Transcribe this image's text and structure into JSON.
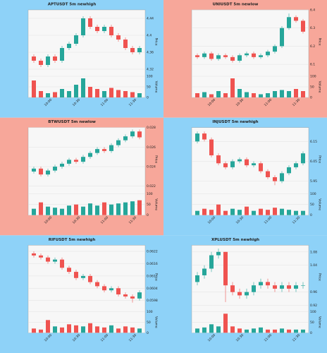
{
  "chart_data": [
    {
      "type": "candlestick",
      "title": "APTUSDT 5m newhigh",
      "background": "#8ed2f8",
      "up_color": "#26a69a",
      "down_color": "#ef5350",
      "volume_color": "#26a69a",
      "ylabel": "Price",
      "vlabel": "Volume",
      "x": [
        null,
        null,
        "10:00",
        null,
        null,
        null,
        "10:30",
        null,
        null,
        null,
        "11:00",
        null,
        null,
        null,
        "11:30",
        null
      ],
      "open": [
        4.35,
        4.34,
        4.33,
        4.35,
        4.34,
        4.37,
        4.38,
        4.4,
        4.44,
        4.42,
        4.41,
        4.42,
        4.4,
        4.39,
        4.37,
        4.36
      ],
      "high": [
        4.355,
        4.345,
        4.355,
        4.355,
        4.375,
        4.385,
        4.405,
        4.445,
        4.445,
        4.425,
        4.425,
        4.425,
        4.405,
        4.395,
        4.375,
        4.375
      ],
      "low": [
        4.335,
        4.325,
        4.325,
        4.335,
        4.335,
        4.365,
        4.375,
        4.395,
        4.415,
        4.405,
        4.405,
        4.395,
        4.385,
        4.365,
        4.355,
        4.355
      ],
      "close": [
        4.34,
        4.33,
        4.35,
        4.34,
        4.37,
        4.38,
        4.4,
        4.44,
        4.42,
        4.41,
        4.42,
        4.4,
        4.39,
        4.37,
        4.36,
        4.37
      ],
      "volume": [
        80,
        30,
        20,
        25,
        40,
        30,
        60,
        90,
        50,
        40,
        30,
        45,
        35,
        30,
        25,
        20
      ],
      "ylim": [
        4.31,
        4.46
      ],
      "yticks": [
        4.32,
        4.36,
        4.4,
        4.44
      ],
      "vlim": [
        0,
        100
      ],
      "vticks": [
        0,
        50,
        100
      ]
    },
    {
      "type": "candlestick",
      "title": "UNIUSDT 5m newlow",
      "background": "#f7a79a",
      "up_color": "#26a69a",
      "down_color": "#ef5350",
      "ylabel": "Price",
      "vlabel": "Volume",
      "x": [
        null,
        null,
        "10:00",
        null,
        null,
        null,
        "10:30",
        null,
        null,
        null,
        "11:00",
        null,
        null,
        null,
        "11:30",
        null
      ],
      "open": [
        6.15,
        6.14,
        6.16,
        6.13,
        6.15,
        6.14,
        6.12,
        6.15,
        6.16,
        6.14,
        6.15,
        6.17,
        6.2,
        6.3,
        6.36,
        6.34
      ],
      "high": [
        6.16,
        6.17,
        6.17,
        6.16,
        6.16,
        6.15,
        6.16,
        6.17,
        6.17,
        6.16,
        6.18,
        6.21,
        6.31,
        6.38,
        6.37,
        6.35
      ],
      "low": [
        6.13,
        6.13,
        6.12,
        6.12,
        6.13,
        6.11,
        6.11,
        6.14,
        6.13,
        6.13,
        6.14,
        6.16,
        6.19,
        6.29,
        6.33,
        6.27
      ],
      "close": [
        6.14,
        6.16,
        6.13,
        6.15,
        6.14,
        6.12,
        6.15,
        6.16,
        6.14,
        6.15,
        6.17,
        6.2,
        6.3,
        6.36,
        6.34,
        6.28
      ],
      "volume": [
        20,
        25,
        15,
        30,
        20,
        90,
        40,
        25,
        20,
        15,
        20,
        30,
        35,
        30,
        40,
        30
      ],
      "ylim": [
        6.05,
        6.4
      ],
      "yticks": [
        6.1,
        6.2,
        6.3,
        6.4
      ],
      "vlim": [
        0,
        100
      ],
      "vticks": [
        0,
        50,
        100
      ]
    },
    {
      "type": "candlestick",
      "title": "BTWUSDT 5m newlow",
      "background": "#f7a79a",
      "up_color": "#26a69a",
      "down_color": "#ef5350",
      "ylabel": "Price",
      "vlabel": "Volume",
      "x": [
        null,
        null,
        "10:00",
        null,
        null,
        null,
        "10:30",
        null,
        null,
        null,
        "11:00",
        null,
        null,
        null,
        "11:30",
        null
      ],
      "open": [
        0.0235,
        0.0238,
        0.0232,
        0.0236,
        0.024,
        0.0243,
        0.0247,
        0.0245,
        0.025,
        0.0254,
        0.0258,
        0.0256,
        0.0262,
        0.0267,
        0.0271,
        0.0276
      ],
      "high": [
        0.024,
        0.024,
        0.0238,
        0.0242,
        0.0245,
        0.0249,
        0.0249,
        0.0252,
        0.0256,
        0.026,
        0.026,
        0.0264,
        0.0269,
        0.0273,
        0.0278,
        0.0278
      ],
      "low": [
        0.0233,
        0.023,
        0.023,
        0.0234,
        0.0238,
        0.0241,
        0.0243,
        0.0243,
        0.0248,
        0.0252,
        0.0254,
        0.0254,
        0.026,
        0.0265,
        0.0269,
        0.0268
      ],
      "close": [
        0.0238,
        0.0232,
        0.0236,
        0.024,
        0.0243,
        0.0247,
        0.0245,
        0.025,
        0.0254,
        0.0258,
        0.0256,
        0.0262,
        0.0267,
        0.0271,
        0.0276,
        0.027
      ],
      "volume": [
        30,
        60,
        40,
        35,
        30,
        45,
        50,
        40,
        55,
        45,
        60,
        50,
        55,
        60,
        65,
        70
      ],
      "ylim": [
        0.0215,
        0.028
      ],
      "yticks": [
        0.022,
        0.024,
        0.026,
        0.028
      ],
      "vlim": [
        0,
        100
      ],
      "vticks": [
        0,
        50,
        100
      ]
    },
    {
      "type": "candlestick",
      "title": "INJUSDT 5m newhigh",
      "background": "#8ed2f8",
      "up_color": "#26a69a",
      "down_color": "#ef5350",
      "ylabel": "Price",
      "vlabel": "Volume",
      "x": [
        null,
        null,
        "10:00",
        null,
        null,
        null,
        "10:30",
        null,
        null,
        null,
        "11:00",
        null,
        null,
        null,
        "11:30",
        null
      ],
      "open": [
        6.15,
        6.19,
        6.16,
        6.08,
        6.04,
        6.02,
        6.05,
        6.06,
        6.03,
        6.04,
        6.0,
        5.97,
        5.95,
        5.99,
        6.02,
        6.04
      ],
      "high": [
        6.2,
        6.2,
        6.17,
        6.09,
        6.05,
        6.06,
        6.07,
        6.07,
        6.05,
        6.05,
        6.01,
        5.98,
        6.0,
        6.03,
        6.05,
        6.1
      ],
      "low": [
        6.14,
        6.15,
        6.07,
        6.03,
        6.01,
        6.01,
        6.04,
        6.02,
        6.02,
        5.99,
        5.96,
        5.93,
        5.94,
        5.98,
        6.01,
        6.03
      ],
      "close": [
        6.19,
        6.16,
        6.08,
        6.04,
        6.02,
        6.05,
        6.06,
        6.03,
        6.04,
        6.0,
        5.97,
        5.95,
        5.99,
        6.02,
        6.04,
        6.09
      ],
      "volume": [
        20,
        30,
        25,
        50,
        20,
        30,
        25,
        40,
        20,
        30,
        25,
        35,
        30,
        25,
        20,
        20
      ],
      "ylim": [
        5.9,
        6.22
      ],
      "yticks": [
        5.95,
        6.05,
        6.15
      ],
      "vlim": [
        0,
        100
      ],
      "vticks": [
        0,
        50,
        100
      ]
    },
    {
      "type": "candlestick",
      "title": "RIFUSDT 5m newhigh",
      "background": "#8ed2f8",
      "up_color": "#26a69a",
      "down_color": "#ef5350",
      "ylabel": "Price",
      "vlabel": "Volume",
      "x": [
        null,
        null,
        "10:00",
        null,
        null,
        null,
        "10:30",
        null,
        null,
        null,
        "11:00",
        null,
        null,
        null,
        "11:30",
        null
      ],
      "open": [
        0.0621,
        0.062,
        0.0619,
        0.0617,
        0.0618,
        0.0614,
        0.0612,
        0.0609,
        0.061,
        0.0607,
        0.0605,
        0.0603,
        0.0604,
        0.0601,
        0.06,
        0.0599
      ],
      "high": [
        0.0622,
        0.0621,
        0.062,
        0.0619,
        0.0619,
        0.0615,
        0.0613,
        0.0611,
        0.0611,
        0.0608,
        0.0606,
        0.0605,
        0.0605,
        0.0602,
        0.0601,
        0.0603
      ],
      "low": [
        0.0619,
        0.0618,
        0.0616,
        0.0616,
        0.0613,
        0.0611,
        0.0608,
        0.0608,
        0.0606,
        0.0604,
        0.0602,
        0.0602,
        0.06,
        0.0599,
        0.0597,
        0.0598
      ],
      "close": [
        0.062,
        0.0619,
        0.0617,
        0.0618,
        0.0614,
        0.0612,
        0.0609,
        0.061,
        0.0607,
        0.0605,
        0.0603,
        0.0604,
        0.0601,
        0.06,
        0.0599,
        0.0602
      ],
      "volume": [
        20,
        15,
        60,
        30,
        25,
        40,
        35,
        30,
        45,
        30,
        25,
        35,
        20,
        30,
        25,
        20
      ],
      "ylim": [
        0.0594,
        0.0625
      ],
      "yticks": [
        0.0598,
        0.0604,
        0.061,
        0.0616,
        0.0622
      ],
      "vlim": [
        0,
        100
      ],
      "vticks": [
        0,
        50,
        100
      ]
    },
    {
      "type": "candlestick",
      "title": "XPLUSDT 5m newhigh",
      "background": "#8ed2f8",
      "up_color": "#26a69a",
      "down_color": "#ef5350",
      "ylabel": "Price",
      "vlabel": "Volume",
      "x": [
        null,
        null,
        "10:00",
        null,
        null,
        null,
        "10:30",
        null,
        null,
        null,
        "11:00",
        null,
        null,
        null,
        "11:30",
        null
      ],
      "open": [
        0.99,
        1.01,
        1.03,
        1.07,
        1.08,
        0.98,
        0.96,
        0.95,
        0.96,
        0.98,
        0.99,
        0.98,
        0.97,
        0.98,
        0.97,
        0.98
      ],
      "high": [
        1.02,
        1.04,
        1.08,
        1.09,
        1.08,
        0.99,
        0.97,
        0.97,
        0.99,
        1.0,
        1.0,
        0.99,
        0.99,
        0.99,
        0.99,
        0.99
      ],
      "low": [
        0.98,
        1.0,
        1.02,
        1.06,
        0.93,
        0.95,
        0.94,
        0.94,
        0.95,
        0.97,
        0.97,
        0.96,
        0.96,
        0.96,
        0.96,
        0.97
      ],
      "close": [
        1.01,
        1.03,
        1.07,
        1.08,
        0.98,
        0.96,
        0.95,
        0.96,
        0.98,
        0.99,
        0.98,
        0.97,
        0.98,
        0.97,
        0.98,
        0.98
      ],
      "volume": [
        20,
        25,
        40,
        30,
        90,
        30,
        20,
        15,
        20,
        25,
        15,
        15,
        20,
        15,
        15,
        15
      ],
      "ylim": [
        0.91,
        1.1
      ],
      "yticks": [
        0.92,
        0.96,
        1.04,
        1.08
      ],
      "vlim": [
        0,
        100
      ],
      "vticks": [
        0,
        50,
        100
      ]
    }
  ]
}
